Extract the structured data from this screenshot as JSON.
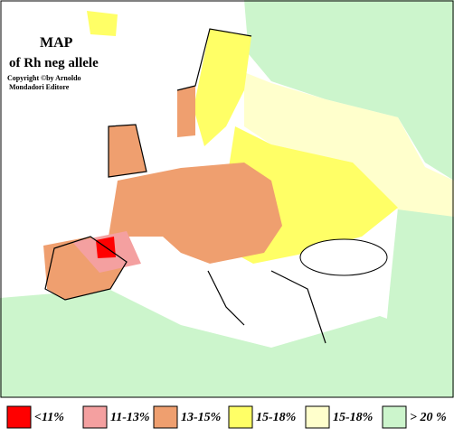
{
  "header": {
    "title": "MAP",
    "subtitle": "of Rh neg allele",
    "copyright": [
      "Copyright ©by Arnoldo",
      "Mondadori Editore"
    ]
  },
  "legend": [
    {
      "label": "<11%",
      "color": "#ff0000"
    },
    {
      "label": "11-13%",
      "color": "#f4a0a0"
    },
    {
      "label": "13-15%",
      "color": "#ef9f6f"
    },
    {
      "label": "15-18%",
      "color": "#ffff66"
    },
    {
      "label": "15-18%",
      "color": "#ffffcc"
    },
    {
      "label": "> 20 %",
      "color": "#ccf5cc"
    }
  ]
}
